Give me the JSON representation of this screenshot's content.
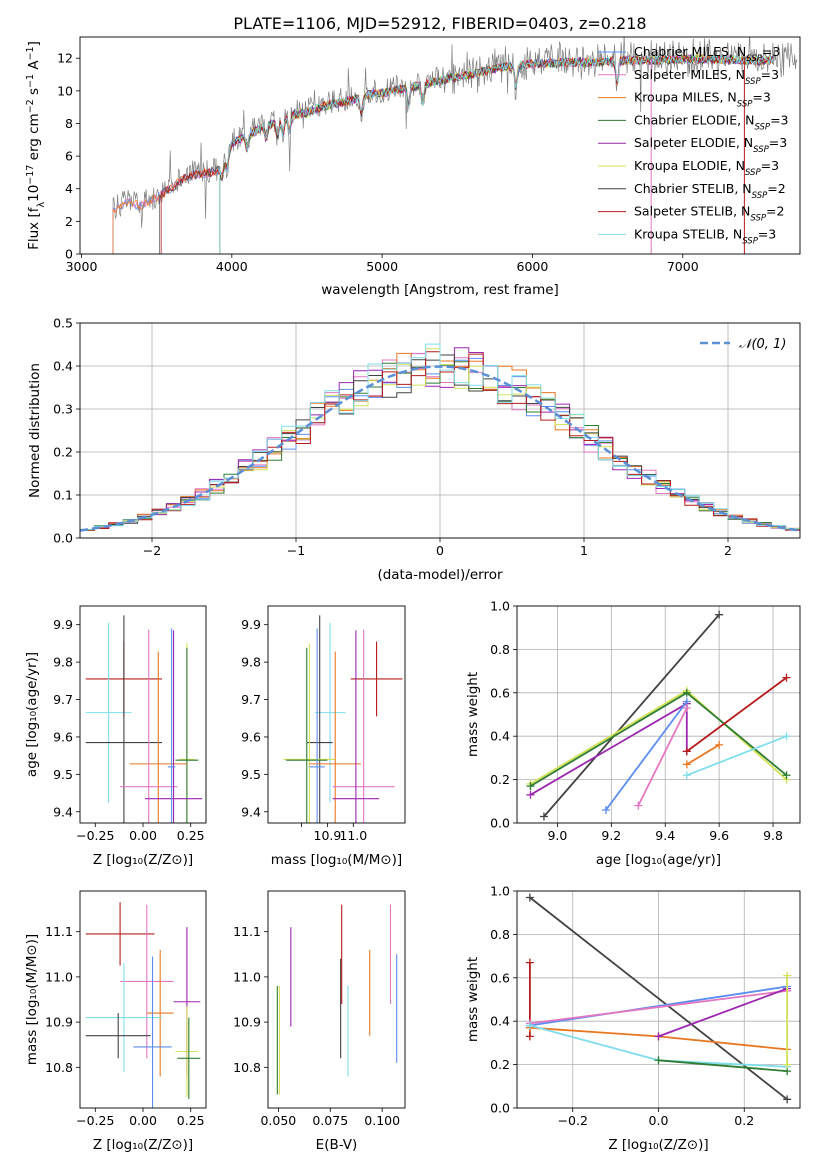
{
  "figure": {
    "title": "PLATE=1106, MJD=52912, FIBERID=0403, z=0.218"
  },
  "legend_series": [
    {
      "name": "Chabrier MILES, N",
      "sub": "SSP",
      "tail": "=3",
      "color": "#2166ac"
    },
    {
      "name": "Salpeter MILES, N",
      "sub": "SSP",
      "tail": "=3",
      "color": "#e377c2"
    },
    {
      "name": "Kroupa MILES, N",
      "sub": "SSP",
      "tail": "=3",
      "color": "#b8860b"
    },
    {
      "name": "Chabrier ELODIE, N",
      "sub": "SSP",
      "tail": "=3",
      "color": "#2e7d32"
    },
    {
      "name": "Salpeter ELODIE, N",
      "sub": "SSP",
      "tail": "=3",
      "color": "#9c27b0"
    },
    {
      "name": "Kroupa ELODIE, N",
      "sub": "SSP",
      "tail": "=3",
      "color": "#d4e157"
    },
    {
      "name": "Chabrier STELIB, N",
      "sub": "SSP",
      "tail": "=2",
      "color": "#424242"
    },
    {
      "name": "Salpeter STELIB, N",
      "sub": "SSP",
      "tail": "=2",
      "color": "#b71c1c"
    },
    {
      "name": "Kroupa STELIB, N",
      "sub": "SSP",
      "tail": "=3",
      "color": "#80deea"
    }
  ],
  "normal_label": "𝒩(0, 1)",
  "chart_data": [
    {
      "id": "spectrum",
      "type": "line",
      "xlabel": "wavelength [Angstrom, rest frame]",
      "ylabel": "Flux [f_λ 10^-17 erg cm^-2 s^-1 A^-1]",
      "xlim": [
        2990,
        7780
      ],
      "ylim": [
        0,
        13.3
      ],
      "xticks": [
        3000,
        4000,
        5000,
        6000,
        7000
      ],
      "yticks": [
        0,
        2,
        4,
        6,
        8,
        10,
        12
      ],
      "grid": false,
      "spectrum_envelope": {
        "x": [
          3210,
          3300,
          3400,
          3500,
          3600,
          3700,
          3800,
          3900,
          3950,
          4000,
          4100,
          4200,
          4300,
          4400,
          4500,
          4600,
          4700,
          4800,
          4900,
          5000,
          5200,
          5400,
          5600,
          5800,
          6000,
          6200,
          6400,
          6600,
          6800,
          7000,
          7200,
          7400,
          7700
        ],
        "y": [
          2.8,
          3.3,
          3.1,
          3.6,
          4.2,
          4.9,
          5.1,
          5.2,
          5.6,
          6.9,
          7.4,
          7.9,
          8.2,
          8.7,
          8.8,
          9.2,
          9.4,
          9.6,
          9.9,
          10.0,
          10.4,
          10.8,
          11.2,
          11.6,
          11.8,
          11.9,
          11.9,
          12.0,
          12.0,
          12.1,
          12.1,
          12.0,
          12.0
        ]
      },
      "observed_color": "#808080"
    },
    {
      "id": "residuals",
      "type": "bar",
      "xlabel": "(data-model)/error",
      "ylabel": "Normed distribution",
      "xlim": [
        -2.5,
        2.5
      ],
      "ylim": [
        0,
        0.5
      ],
      "xticks": [
        -2,
        -1,
        0,
        1,
        2
      ],
      "yticks": [
        0.0,
        0.1,
        0.2,
        0.3,
        0.4,
        0.5
      ],
      "grid": true,
      "bin_width": 0.1
    },
    {
      "id": "age_vs_Z",
      "type": "scatter",
      "xlabel": "Z [log10(Z/Z⊙)]",
      "ylabel": "age [log10(age/yr)]",
      "xlim": [
        -0.33,
        0.33
      ],
      "ylim": [
        9.37,
        9.95
      ],
      "xticks": [
        -0.25,
        0.0,
        0.25
      ],
      "xticklabels": [
        "−0.25",
        "0.00",
        "0.25"
      ],
      "yticks": [
        9.4,
        9.5,
        9.6,
        9.7,
        9.8,
        9.9
      ],
      "points": [
        {
          "series": "Salpeter STELIB",
          "x": -0.1,
          "xerr": 0.2,
          "y": 9.755,
          "yerr": 0.1,
          "color": "#b71c1c"
        },
        {
          "series": "Kroupa STELIB",
          "x": -0.18,
          "xerr": 0.12,
          "y": 9.665,
          "yerr": 0.24,
          "color": "#80deea"
        },
        {
          "series": "Chabrier STELIB",
          "x": -0.1,
          "xerr": 0.2,
          "y": 9.585,
          "yerr": 0.34,
          "color": "#424242"
        },
        {
          "series": "Kroupa ELODIE",
          "x": 0.23,
          "xerr": 0.04,
          "y": 9.54,
          "yerr": 0.31,
          "color": "#d4e157"
        },
        {
          "series": "Chabrier ELODIE",
          "x": 0.23,
          "xerr": 0.06,
          "y": 9.538,
          "yerr": 0.3,
          "color": "#2e7d32"
        },
        {
          "series": "Kroupa MILES",
          "x": 0.08,
          "xerr": 0.15,
          "y": 9.528,
          "yerr": 0.3,
          "color": "#e87722"
        },
        {
          "series": "Salpeter MILES",
          "x": 0.03,
          "xerr": 0.15,
          "y": 9.467,
          "yerr": 0.42,
          "color": "#e377c2"
        },
        {
          "series": "Salpeter ELODIE",
          "x": 0.16,
          "xerr": 0.15,
          "y": 9.435,
          "yerr": 0.45,
          "color": "#9c27b0"
        },
        {
          "series": "Chabrier MILES",
          "x": 0.15,
          "xerr": 0.02,
          "y": 9.52,
          "yerr": 0.37,
          "color": "#5b8def"
        }
      ]
    },
    {
      "id": "age_vs_mass",
      "type": "scatter",
      "xlabel": "mass [log10(M/M⊙)]",
      "ylabel": "",
      "xlim": [
        10.67,
        11.2
      ],
      "ylim": [
        9.37,
        9.95
      ],
      "xticks": [
        10.8,
        10.9,
        11.0
      ],
      "xticklabels": [
        "",
        "10.9",
        "11.0"
      ],
      "yticks": [
        9.4,
        9.5,
        9.6,
        9.7,
        9.8,
        9.9
      ],
      "points": [
        {
          "series": "Salpeter STELIB",
          "x": 11.09,
          "xerr": 0.1,
          "y": 9.755,
          "yerr": 0.1,
          "color": "#b71c1c"
        },
        {
          "series": "Kroupa STELIB",
          "x": 10.91,
          "xerr": 0.06,
          "y": 9.665,
          "yerr": 0.24,
          "color": "#80deea"
        },
        {
          "series": "Chabrier STELIB",
          "x": 10.87,
          "xerr": 0.05,
          "y": 9.585,
          "yerr": 0.34,
          "color": "#424242"
        },
        {
          "series": "Kroupa ELODIE",
          "x": 10.83,
          "xerr": 0.1,
          "y": 9.54,
          "yerr": 0.31,
          "color": "#d4e157"
        },
        {
          "series": "Chabrier ELODIE",
          "x": 10.82,
          "xerr": 0.08,
          "y": 9.538,
          "yerr": 0.3,
          "color": "#2e7d32"
        },
        {
          "series": "Kroupa MILES",
          "x": 10.93,
          "xerr": 0.1,
          "y": 9.528,
          "yerr": 0.3,
          "color": "#e87722"
        },
        {
          "series": "Salpeter MILES",
          "x": 11.04,
          "xerr": 0.12,
          "y": 9.467,
          "yerr": 0.42,
          "color": "#e377c2"
        },
        {
          "series": "Salpeter ELODIE",
          "x": 11.01,
          "xerr": 0.09,
          "y": 9.435,
          "yerr": 0.45,
          "color": "#9c27b0"
        },
        {
          "series": "Chabrier MILES",
          "x": 10.86,
          "xerr": 0.03,
          "y": 9.52,
          "yerr": 0.37,
          "color": "#5b8def"
        }
      ]
    },
    {
      "id": "weight_vs_age",
      "type": "line",
      "xlabel": "age [log10(age/yr)]",
      "ylabel": "mass weight",
      "xlim": [
        8.85,
        9.9
      ],
      "ylim": [
        0,
        1
      ],
      "xticks": [
        9.0,
        9.2,
        9.4,
        9.6,
        9.8
      ],
      "yticks": [
        0.0,
        0.2,
        0.4,
        0.6,
        0.8,
        1.0
      ],
      "grid": true,
      "series": [
        {
          "name": "Chabrier STELIB",
          "color": "#424242",
          "x": [
            8.95,
            9.6
          ],
          "y": [
            0.03,
            0.96
          ]
        },
        {
          "name": "Kroupa ELODIE",
          "color": "#d4e157",
          "x": [
            8.9,
            9.48,
            9.85
          ],
          "y": [
            0.18,
            0.61,
            0.2
          ]
        },
        {
          "name": "Chabrier ELODIE",
          "color": "#2e7d32",
          "x": [
            8.9,
            9.48,
            9.85
          ],
          "y": [
            0.17,
            0.6,
            0.22
          ]
        },
        {
          "name": "Salpeter ELODIE",
          "color": "#9c27b0",
          "x": [
            8.9,
            9.48,
            9.48
          ],
          "y": [
            0.13,
            0.55,
            0.33
          ]
        },
        {
          "name": "Chabrier MILES",
          "color": "#5b8def",
          "x": [
            9.18,
            9.48
          ],
          "y": [
            0.06,
            0.56
          ]
        },
        {
          "name": "Salpeter MILES",
          "color": "#e377c2",
          "x": [
            9.3,
            9.48
          ],
          "y": [
            0.08,
            0.53
          ]
        },
        {
          "name": "Salpeter STELIB",
          "color": "#b71c1c",
          "x": [
            9.48,
            9.85
          ],
          "y": [
            0.33,
            0.67
          ]
        },
        {
          "name": "Kroupa MILES",
          "color": "#e87722",
          "x": [
            9.48,
            9.6
          ],
          "y": [
            0.27,
            0.36
          ]
        },
        {
          "name": "Kroupa STELIB",
          "color": "#80deea",
          "x": [
            9.48,
            9.85
          ],
          "y": [
            0.22,
            0.4
          ]
        }
      ]
    },
    {
      "id": "mass_vs_Z",
      "type": "scatter",
      "xlabel": "Z [log10(Z/Z⊙)]",
      "ylabel": "mass [log10(M/M⊙)]",
      "xlim": [
        -0.33,
        0.33
      ],
      "ylim": [
        10.71,
        11.19
      ],
      "xticks": [
        -0.25,
        0.0,
        0.25
      ],
      "xticklabels": [
        "−0.25",
        "0.00",
        "0.25"
      ],
      "yticks": [
        10.8,
        10.9,
        11.0,
        11.1
      ],
      "points": [
        {
          "series": "Salpeter STELIB",
          "x": -0.12,
          "xerr": 0.18,
          "y": 11.095,
          "yerr": 0.07,
          "color": "#b71c1c"
        },
        {
          "series": "Salpeter MILES",
          "x": 0.02,
          "xerr": 0.14,
          "y": 10.99,
          "yerr": 0.17,
          "color": "#e377c2"
        },
        {
          "series": "Salpeter ELODIE",
          "x": 0.23,
          "xerr": 0.07,
          "y": 10.945,
          "yerr": 0.165,
          "color": "#9c27b0"
        },
        {
          "series": "Kroupa MILES",
          "x": 0.09,
          "xerr": 0.07,
          "y": 10.92,
          "yerr": 0.14,
          "color": "#e87722"
        },
        {
          "series": "Kroupa STELIB",
          "x": -0.1,
          "xerr": 0.2,
          "y": 10.91,
          "yerr": 0.12,
          "color": "#80deea"
        },
        {
          "series": "Chabrier STELIB",
          "x": -0.13,
          "xerr": 0.17,
          "y": 10.87,
          "yerr": 0.05,
          "color": "#424242"
        },
        {
          "series": "Chabrier MILES",
          "x": 0.05,
          "xerr": 0.1,
          "y": 10.845,
          "yerr": 0.2,
          "color": "#5b8def"
        },
        {
          "series": "Kroupa ELODIE",
          "x": 0.23,
          "xerr": 0.06,
          "y": 10.835,
          "yerr": 0.1,
          "color": "#d4e157"
        },
        {
          "series": "Chabrier ELODIE",
          "x": 0.24,
          "xerr": 0.06,
          "y": 10.82,
          "yerr": 0.09,
          "color": "#2e7d32"
        }
      ]
    },
    {
      "id": "mass_vs_ebv",
      "type": "scatter",
      "xlabel": "E(B-V)",
      "ylabel": "",
      "xlim": [
        0.045,
        0.111
      ],
      "ylim": [
        10.71,
        11.19
      ],
      "xticks": [
        0.05,
        0.075,
        0.1
      ],
      "xticklabels": [
        "0.050",
        "0.075",
        "0.100"
      ],
      "yticks": [
        10.8,
        10.9,
        11.0,
        11.1
      ],
      "points": [
        {
          "series": "Chabrier ELODIE",
          "x": 0.0495,
          "y": 10.86,
          "yerr": 0.12,
          "color": "#2e7d32"
        },
        {
          "series": "Kroupa ELODIE",
          "x": 0.0505,
          "y": 10.86,
          "yerr": 0.12,
          "color": "#d4e157"
        },
        {
          "series": "Salpeter ELODIE",
          "x": 0.056,
          "y": 11.0,
          "yerr": 0.11,
          "color": "#9c27b0"
        },
        {
          "series": "Chabrier STELIB",
          "x": 0.08,
          "y": 10.93,
          "yerr": 0.11,
          "color": "#424242"
        },
        {
          "series": "Salpeter STELIB",
          "x": 0.0805,
          "y": 11.05,
          "yerr": 0.11,
          "color": "#b71c1c"
        },
        {
          "series": "Kroupa STELIB",
          "x": 0.0835,
          "y": 10.88,
          "yerr": 0.1,
          "color": "#80deea"
        },
        {
          "series": "Kroupa MILES",
          "x": 0.094,
          "y": 10.965,
          "yerr": 0.095,
          "color": "#e87722"
        },
        {
          "series": "Salpeter MILES",
          "x": 0.104,
          "y": 11.05,
          "yerr": 0.11,
          "color": "#e377c2"
        },
        {
          "series": "Chabrier MILES",
          "x": 0.107,
          "y": 10.93,
          "yerr": 0.12,
          "color": "#5b8def"
        }
      ]
    },
    {
      "id": "weight_vs_Z",
      "type": "line",
      "xlabel": "Z [log10(Z/Z⊙)]",
      "ylabel": "mass weight",
      "xlim": [
        -0.33,
        0.33
      ],
      "ylim": [
        0,
        1
      ],
      "xticks": [
        -0.2,
        0.0,
        0.2
      ],
      "xticklabels": [
        "−0.2",
        "0.0",
        "0.2"
      ],
      "yticks": [
        0.0,
        0.2,
        0.4,
        0.6,
        0.8,
        1.0
      ],
      "grid": true,
      "series": [
        {
          "name": "Chabrier STELIB",
          "color": "#424242",
          "x": [
            -0.3,
            0.3
          ],
          "y": [
            0.97,
            0.04
          ]
        },
        {
          "name": "Salpeter STELIB",
          "color": "#b71c1c",
          "x": [
            -0.3,
            -0.3
          ],
          "y": [
            0.67,
            0.33
          ]
        },
        {
          "name": "Chabrier MILES",
          "color": "#5b8def",
          "x": [
            -0.3,
            0.3
          ],
          "y": [
            0.38,
            0.56
          ]
        },
        {
          "name": "Salpeter MILES",
          "color": "#e377c2",
          "x": [
            -0.3,
            0.3
          ],
          "y": [
            0.39,
            0.54
          ]
        },
        {
          "name": "Kroupa MILES",
          "color": "#e87722",
          "x": [
            -0.3,
            0.0,
            0.3
          ],
          "y": [
            0.37,
            0.33,
            0.27
          ]
        },
        {
          "name": "Kroupa STELIB",
          "color": "#80deea",
          "x": [
            -0.3,
            0.0,
            0.3
          ],
          "y": [
            0.38,
            0.22,
            0.19
          ]
        },
        {
          "name": "Chabrier ELODIE",
          "color": "#2e7d32",
          "x": [
            0.0,
            0.3
          ],
          "y": [
            0.22,
            0.17
          ]
        },
        {
          "name": "Salpeter ELODIE",
          "color": "#9c27b0",
          "x": [
            0.0,
            0.3
          ],
          "y": [
            0.33,
            0.55
          ]
        },
        {
          "name": "Kroupa ELODIE",
          "color": "#d4e157",
          "x": [
            0.3,
            0.3
          ],
          "y": [
            0.61,
            0.2
          ]
        }
      ]
    }
  ]
}
